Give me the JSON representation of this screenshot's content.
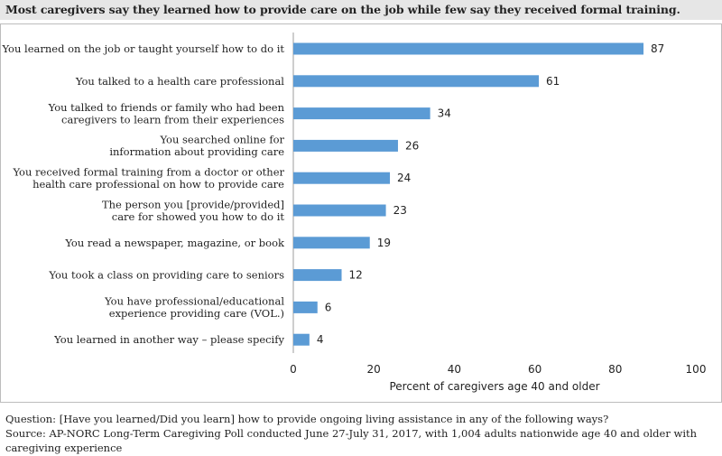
{
  "title": "Most caregivers say they learned how to provide care on the job while few say they received formal training.",
  "chart_data": {
    "type": "bar",
    "orientation": "horizontal",
    "categories": [
      [
        "You learned on the job or taught yourself how to do it"
      ],
      [
        "You talked to a health care professional"
      ],
      [
        "You talked to friends or family who had been",
        "caregivers to learn from their experiences"
      ],
      [
        "You searched online for",
        "information about providing care"
      ],
      [
        "You received formal training from a doctor or other",
        "health care professional on how to provide care"
      ],
      [
        "The person you [provide/provided]",
        "care for showed you how to do it"
      ],
      [
        "You read a newspaper, magazine, or book"
      ],
      [
        "You took a class on providing care to seniors"
      ],
      [
        "You have professional/educational",
        "experience providing care (VOL.)"
      ],
      [
        "You learned in another way – please specify"
      ]
    ],
    "values": [
      87,
      61,
      34,
      26,
      24,
      23,
      19,
      12,
      6,
      4
    ],
    "xlabel": "Percent of caregivers age 40 and older",
    "xlim": [
      0,
      100
    ],
    "xticks": [
      0,
      20,
      40,
      60,
      80,
      100
    ],
    "bar_color": "#5b9bd5",
    "grid": false,
    "data_labels": true
  },
  "notes": {
    "question": "Question: [Have you learned/Did you learn] how to provide ongoing living assistance in any of the following ways?",
    "source": "Source: AP-NORC Long-Term Caregiving Poll conducted June 27-July 31, 2017, with 1,004 adults nationwide age 40 and older with caregiving experience"
  }
}
